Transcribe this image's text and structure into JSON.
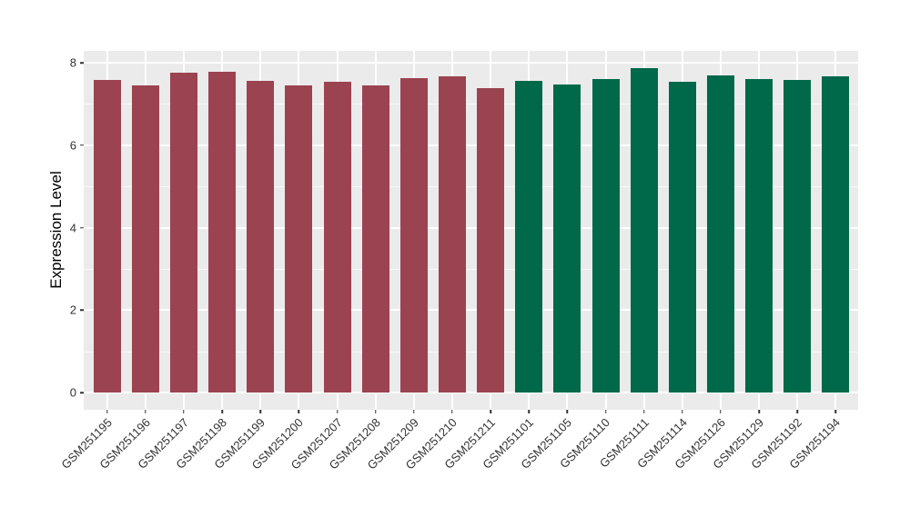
{
  "figure": {
    "colors": {
      "panel_background": "#EBEBEB",
      "grid": "#FFFFFF",
      "bar_red": "#9B4350",
      "bar_green": "#00694A",
      "tick_text": "#333333",
      "axis_title_text": "#000000"
    }
  },
  "chart_data": {
    "type": "bar",
    "title": "",
    "xlabel": "",
    "ylabel": "Expression Level",
    "ylim": [
      0,
      8.3
    ],
    "yticks": [
      0,
      2,
      4,
      6,
      8
    ],
    "minor_yticks": [
      1,
      3,
      5,
      7
    ],
    "grid": "white major and minor gridlines on gray panel (ggplot theme_gray)",
    "legend_position": "none",
    "categories": [
      "GSM251195",
      "GSM251196",
      "GSM251197",
      "GSM251198",
      "GSM251199",
      "GSM251200",
      "GSM251207",
      "GSM251208",
      "GSM251209",
      "GSM251210",
      "GSM251211",
      "GSM251101",
      "GSM251105",
      "GSM251110",
      "GSM251111",
      "GSM251114",
      "GSM251126",
      "GSM251129",
      "GSM251192",
      "GSM251194"
    ],
    "values": [
      7.59,
      7.44,
      7.76,
      7.79,
      7.57,
      7.44,
      7.54,
      7.44,
      7.63,
      7.68,
      7.39,
      7.56,
      7.47,
      7.61,
      7.87,
      7.54,
      7.69,
      7.61,
      7.58,
      7.66
    ],
    "groups": [
      "red",
      "red",
      "red",
      "red",
      "red",
      "red",
      "red",
      "red",
      "red",
      "red",
      "red",
      "green",
      "green",
      "green",
      "green",
      "green",
      "green",
      "green",
      "green",
      "green"
    ],
    "group_colors": {
      "red": "#9B4350",
      "green": "#00694A"
    }
  }
}
